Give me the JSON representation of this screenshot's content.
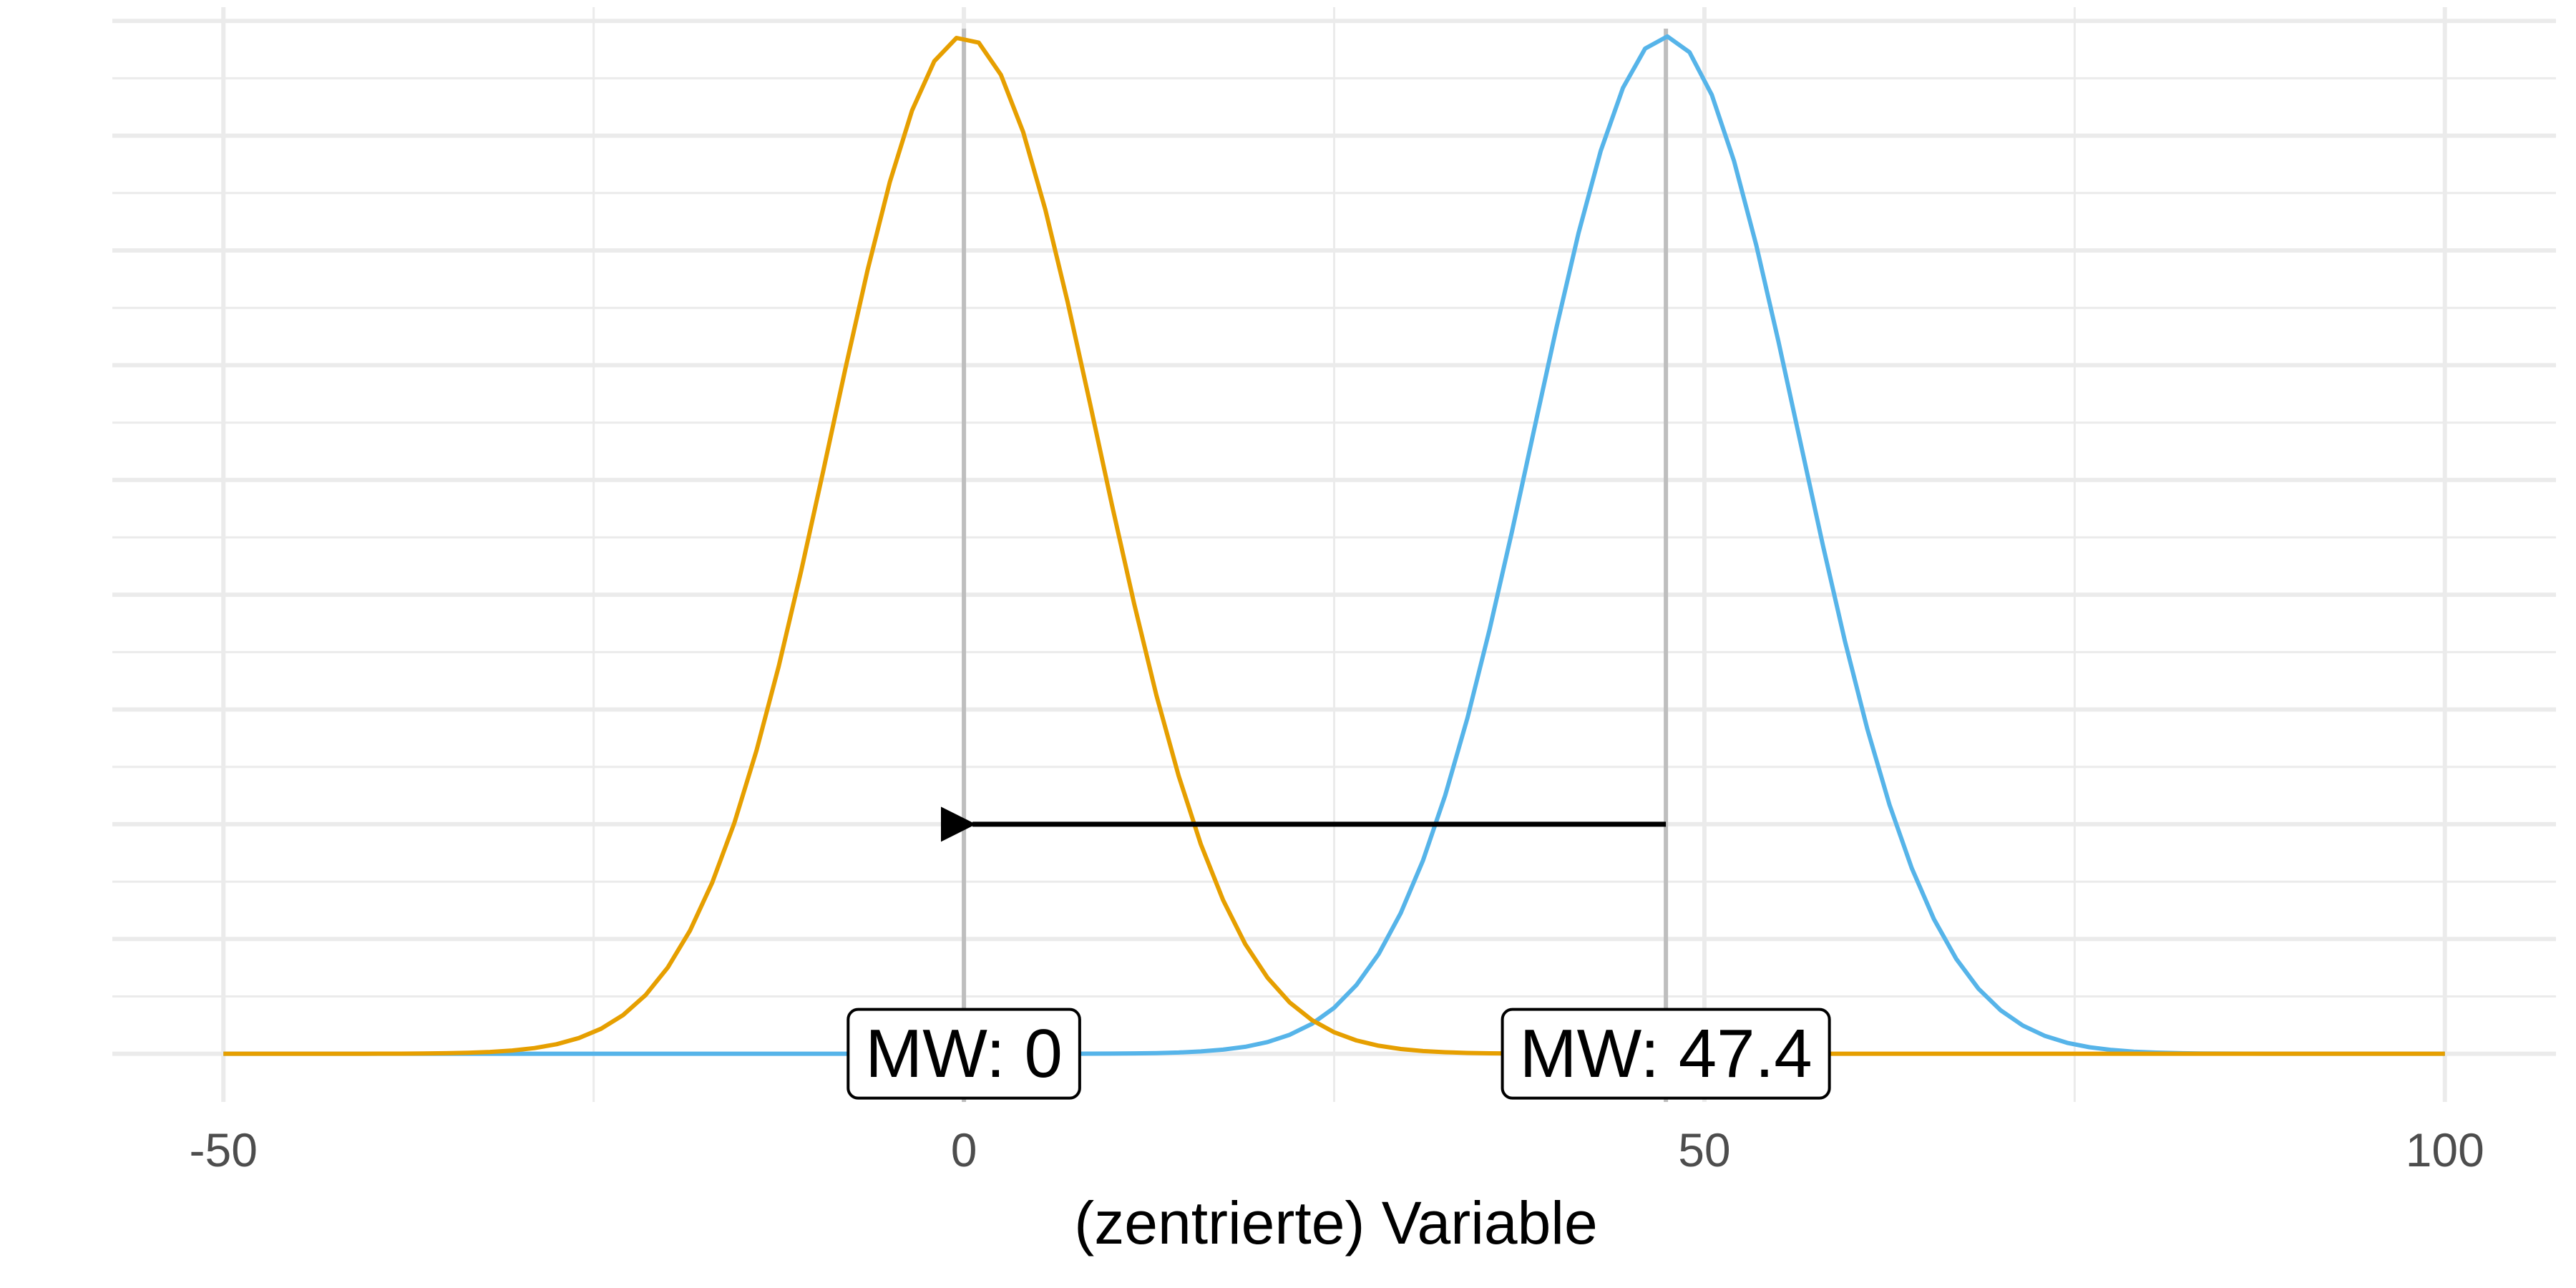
{
  "chart_data": {
    "type": "line",
    "title": "",
    "xlabel": "(zentrierte) Variable",
    "ylabel": "",
    "xlim": [
      -57.5,
      107.5
    ],
    "ylim": [
      -0.0021,
      0.0456
    ],
    "x_ticks": [
      -50,
      0,
      50,
      100
    ],
    "x_tick_labels": [
      "-50",
      "0",
      "50",
      "100"
    ],
    "y_tick_labels_shown": false,
    "grid": true,
    "legend": "none",
    "series": [
      {
        "mean": 47.4,
        "sd": 9,
        "x_range": [
          -50,
          100
        ],
        "color": "#56B4E9"
      },
      {
        "mean": 0,
        "sd": 9,
        "x_range": [
          -50,
          100
        ],
        "color": "#E69F00"
      }
    ],
    "mean_lines": [
      {
        "x": 0,
        "label": "MW: 0"
      },
      {
        "x": 47.4,
        "label": "MW: 47.4"
      }
    ],
    "arrow": {
      "from_x": 47.4,
      "to_x": 0,
      "y": 0.01
    },
    "colors": {
      "grid": "#ebebeb",
      "mean_line": "#bebebe",
      "arrow": "#000000",
      "tick_text": "#4d4d4d"
    }
  }
}
